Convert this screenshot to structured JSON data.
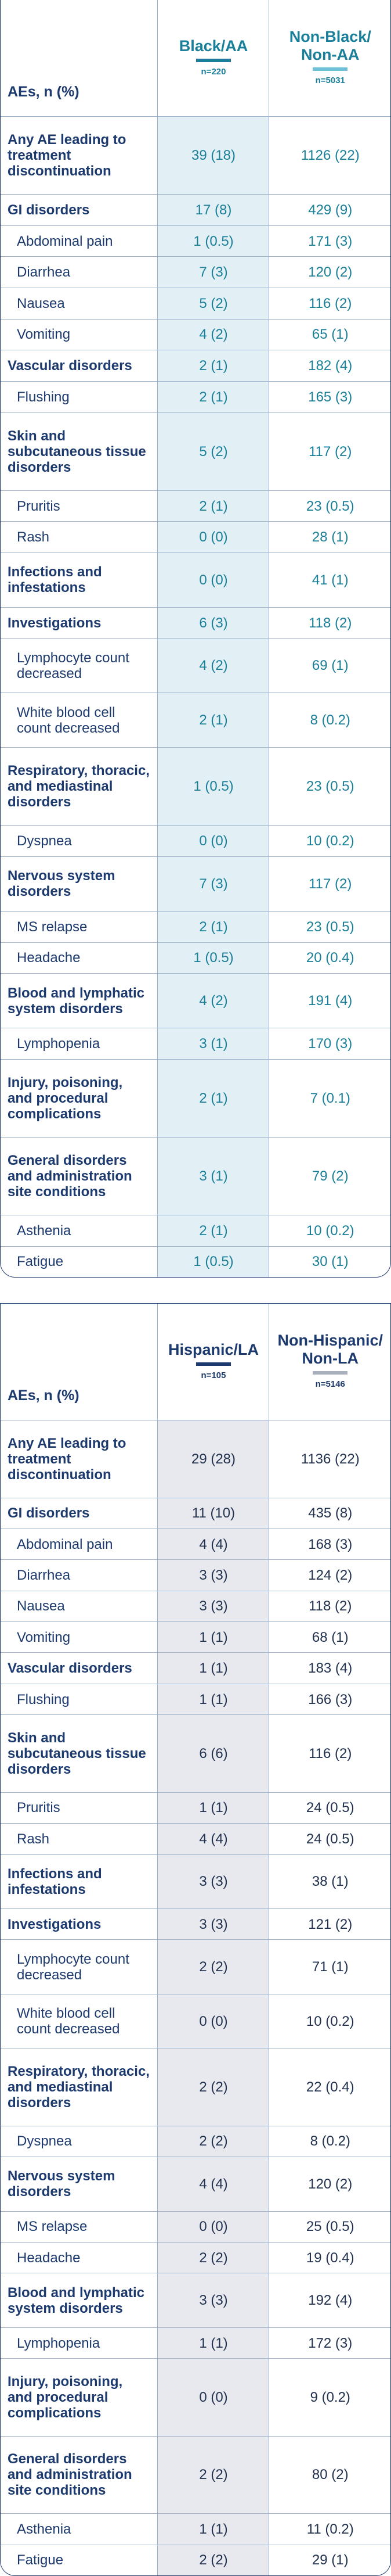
{
  "tables": [
    {
      "header": {
        "label": "AEs, n (%)",
        "col1": "Black/AA",
        "col1_n": "n=220",
        "col2": "Non-Black/\nNon-AA",
        "col2_n": "n=5031"
      },
      "rows": [
        {
          "label": "Any AE leading to treatment discontinuation",
          "group": true,
          "values": [
            "39 (18)",
            "1126 (22)"
          ]
        },
        {
          "label": "GI disorders",
          "group": true,
          "values": [
            "17 (8)",
            "429 (9)"
          ]
        },
        {
          "label": "Abdominal pain",
          "group": false,
          "values": [
            "1 (0.5)",
            "171 (3)"
          ]
        },
        {
          "label": "Diarrhea",
          "group": false,
          "values": [
            "7 (3)",
            "120 (2)"
          ]
        },
        {
          "label": "Nausea",
          "group": false,
          "values": [
            "5 (2)",
            "116 (2)"
          ]
        },
        {
          "label": "Vomiting",
          "group": false,
          "values": [
            "4 (2)",
            "65 (1)"
          ]
        },
        {
          "label": "Vascular disorders",
          "group": true,
          "values": [
            "2 (1)",
            "182 (4)"
          ]
        },
        {
          "label": "Flushing",
          "group": false,
          "values": [
            "2 (1)",
            "165 (3)"
          ]
        },
        {
          "label": "Skin and subcutaneous tissue disorders",
          "group": true,
          "values": [
            "5 (2)",
            "117 (2)"
          ]
        },
        {
          "label": "Pruritis",
          "group": false,
          "values": [
            "2 (1)",
            "23 (0.5)"
          ]
        },
        {
          "label": "Rash",
          "group": false,
          "values": [
            "0 (0)",
            "28 (1)"
          ]
        },
        {
          "label": "Infections and infestations",
          "group": true,
          "values": [
            "0 (0)",
            "41 (1)"
          ]
        },
        {
          "label": "Investigations",
          "group": true,
          "values": [
            "6 (3)",
            "118 (2)"
          ]
        },
        {
          "label": "Lymphocyte count decreased",
          "group": false,
          "values": [
            "4 (2)",
            "69 (1)"
          ]
        },
        {
          "label": "White blood cell count decreased",
          "group": false,
          "values": [
            "2 (1)",
            "8 (0.2)"
          ]
        },
        {
          "label": "Respiratory, thoracic, and mediastinal disorders",
          "group": true,
          "values": [
            "1 (0.5)",
            "23 (0.5)"
          ]
        },
        {
          "label": "Dyspnea",
          "group": false,
          "values": [
            "0 (0)",
            "10 (0.2)"
          ]
        },
        {
          "label": "Nervous system disorders",
          "group": true,
          "values": [
            "7 (3)",
            "117 (2)"
          ]
        },
        {
          "label": "MS relapse",
          "group": false,
          "values": [
            "2 (1)",
            "23 (0.5)"
          ]
        },
        {
          "label": "Headache",
          "group": false,
          "values": [
            "1 (0.5)",
            "20 (0.4)"
          ]
        },
        {
          "label": "Blood and lymphatic system disorders",
          "group": true,
          "values": [
            "4 (2)",
            "191 (4)"
          ]
        },
        {
          "label": "Lymphopenia",
          "group": false,
          "values": [
            "3 (1)",
            "170 (3)"
          ]
        },
        {
          "label": "Injury, poisoning, and procedural complications",
          "group": true,
          "values": [
            "2 (1)",
            "7 (0.1)"
          ]
        },
        {
          "label": "General disorders and administration site conditions",
          "group": true,
          "values": [
            "3 (1)",
            "79 (2)"
          ]
        },
        {
          "label": "Asthenia",
          "group": false,
          "values": [
            "2 (1)",
            "10 (0.2)"
          ]
        },
        {
          "label": "Fatigue",
          "group": false,
          "values": [
            "1 (0.5)",
            "30 (1)"
          ]
        }
      ]
    },
    {
      "header": {
        "label": "AEs, n (%)",
        "col1": "Hispanic/LA",
        "col1_n": "n=105",
        "col2": "Non-Hispanic/\nNon-LA",
        "col2_n": "n=5146"
      },
      "rows": [
        {
          "label": "Any AE leading to treatment discontinuation",
          "group": true,
          "values": [
            "29 (28)",
            "1136 (22)"
          ]
        },
        {
          "label": "GI disorders",
          "group": true,
          "values": [
            "11 (10)",
            "435 (8)"
          ]
        },
        {
          "label": "Abdominal pain",
          "group": false,
          "values": [
            "4 (4)",
            "168 (3)"
          ]
        },
        {
          "label": "Diarrhea",
          "group": false,
          "values": [
            "3 (3)",
            "124 (2)"
          ]
        },
        {
          "label": "Nausea",
          "group": false,
          "values": [
            "3 (3)",
            "118 (2)"
          ]
        },
        {
          "label": "Vomiting",
          "group": false,
          "values": [
            "1 (1)",
            "68 (1)"
          ]
        },
        {
          "label": "Vascular disorders",
          "group": true,
          "values": [
            "1 (1)",
            "183 (4)"
          ]
        },
        {
          "label": "Flushing",
          "group": false,
          "values": [
            "1 (1)",
            "166 (3)"
          ]
        },
        {
          "label": "Skin and subcutaneous tissue disorders",
          "group": true,
          "values": [
            "6 (6)",
            "116 (2)"
          ]
        },
        {
          "label": "Pruritis",
          "group": false,
          "values": [
            "1 (1)",
            "24 (0.5)"
          ]
        },
        {
          "label": "Rash",
          "group": false,
          "values": [
            "4 (4)",
            "24 (0.5)"
          ]
        },
        {
          "label": "Infections and infestations",
          "group": true,
          "values": [
            "3 (3)",
            "38 (1)"
          ]
        },
        {
          "label": "Investigations",
          "group": true,
          "values": [
            "3 (3)",
            "121 (2)"
          ]
        },
        {
          "label": "Lymphocyte count decreased",
          "group": false,
          "values": [
            "2 (2)",
            "71 (1)"
          ]
        },
        {
          "label": "White blood cell count decreased",
          "group": false,
          "values": [
            "0 (0)",
            "10 (0.2)"
          ]
        },
        {
          "label": "Respiratory, thoracic, and mediastinal disorders",
          "group": true,
          "values": [
            "2 (2)",
            "22 (0.4)"
          ]
        },
        {
          "label": "Dyspnea",
          "group": false,
          "values": [
            "2 (2)",
            "8 (0.2)"
          ]
        },
        {
          "label": "Nervous system disorders",
          "group": true,
          "values": [
            "4 (4)",
            "120 (2)"
          ]
        },
        {
          "label": "MS relapse",
          "group": false,
          "values": [
            "0 (0)",
            "25 (0.5)"
          ]
        },
        {
          "label": "Headache",
          "group": false,
          "values": [
            "2 (2)",
            "19 (0.4)"
          ]
        },
        {
          "label": "Blood and lymphatic system disorders",
          "group": true,
          "values": [
            "3 (3)",
            "192 (4)"
          ]
        },
        {
          "label": "Lymphopenia",
          "group": false,
          "values": [
            "1 (1)",
            "172 (3)"
          ]
        },
        {
          "label": "Injury, poisoning, and procedural complications",
          "group": true,
          "values": [
            "0 (0)",
            "9 (0.2)"
          ]
        },
        {
          "label": "General disorders and administration site conditions",
          "group": true,
          "values": [
            "2 (2)",
            "80 (2)"
          ]
        },
        {
          "label": "Asthenia",
          "group": false,
          "values": [
            "1 (1)",
            "11 (0.2)"
          ]
        },
        {
          "label": "Fatigue",
          "group": false,
          "values": [
            "2 (2)",
            "29 (1)"
          ]
        }
      ]
    }
  ]
}
